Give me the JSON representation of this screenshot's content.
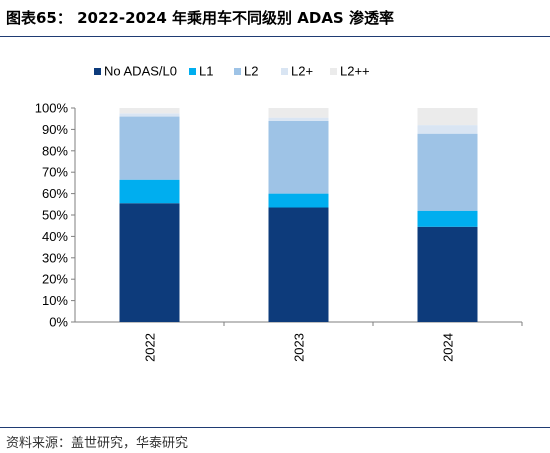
{
  "header": {
    "title": "图表65：  2022-2024 年乘用车不同级别 ADAS 渗透率"
  },
  "footer": {
    "source": "资料来源：盖世研究，华泰研究"
  },
  "colors": {
    "no_adas": "#0d3b7b",
    "l1": "#00aeef",
    "l2": "#9ec3e6",
    "l2plus": "#d9e5f3",
    "l2plusplus": "#ebebeb",
    "axis": "#7f7f7f"
  },
  "chart_data": {
    "type": "bar",
    "stacked": true,
    "categories": [
      "2022",
      "2023",
      "2024"
    ],
    "series": [
      {
        "name": "No ADAS/L0",
        "values": [
          55.5,
          53.5,
          44.5
        ]
      },
      {
        "name": "L1",
        "values": [
          11,
          6.5,
          7.5
        ]
      },
      {
        "name": "L2",
        "values": [
          29.5,
          34,
          36
        ]
      },
      {
        "name": "L2+",
        "values": [
          1.5,
          1.5,
          4
        ]
      },
      {
        "name": "L2++",
        "values": [
          2.5,
          4.5,
          8
        ]
      }
    ],
    "ylim": [
      0,
      100
    ],
    "yticks": [
      "0%",
      "10%",
      "20%",
      "30%",
      "40%",
      "50%",
      "60%",
      "70%",
      "80%",
      "90%",
      "100%"
    ],
    "legend_position": "top",
    "grid": false
  }
}
